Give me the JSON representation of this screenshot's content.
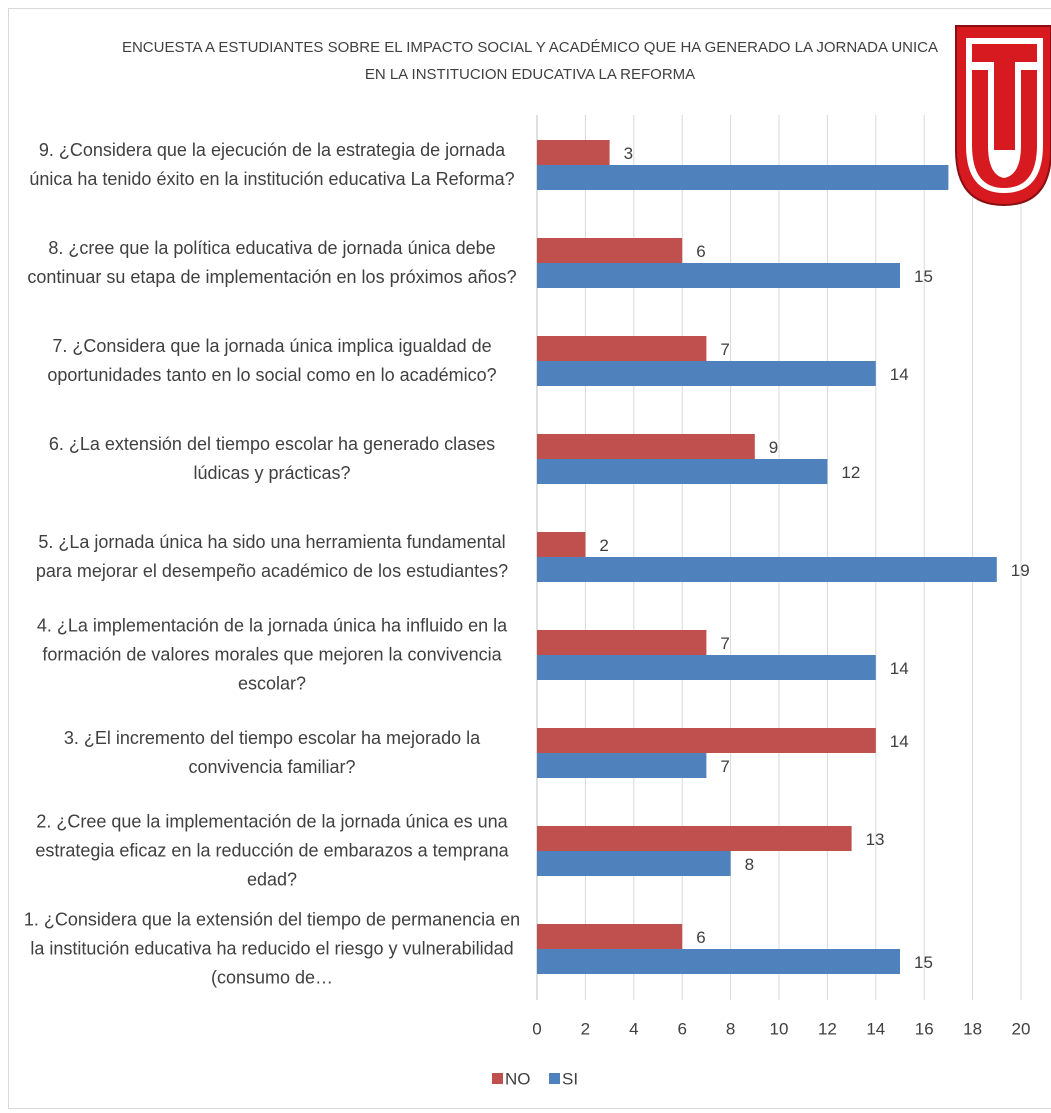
{
  "chart_data": {
    "type": "barh",
    "title": "ENCUESTA A ESTUDIANTES SOBRE EL IMPACTO SOCIAL Y ACADÉMICO QUE HA GENERADO LA JORNADA UNICA EN LA INSTITUCION EDUCATIVA LA REFORMA",
    "categories": [
      "1.   ¿Considera que  la extensión del tiempo de permanencia en la institución educativa ha reducido el riesgo  y vulnerabilidad (consumo de…",
      "2.   ¿Cree que la implementación de la  jornada única  es una estrategia eficaz en la reducción de embarazos a temprana edad?",
      "3.   ¿El incremento del tiempo escolar ha mejorado la convivencia familiar?",
      "4.   ¿La implementación de la jornada única ha influido en la formación de valores morales que mejoren la  convivencia escolar?",
      "5.   ¿La jornada única ha sido una herramienta fundamental para mejorar el desempeño académico de los estudiantes?",
      "6.   ¿La extensión del tiempo escolar  ha generado clases  lúdicas y prácticas?",
      "7.   ¿Considera que la jornada única implica igualdad de oportunidades tanto en lo social como en lo académico?",
      "8.   ¿cree que la política educativa de jornada única debe continuar su etapa de implementación en los próximos años?",
      "9.   ¿Considera que la ejecución de la estrategia de jornada única ha tenido éxito en la institución educativa La Reforma?"
    ],
    "series": [
      {
        "name": "NO",
        "color": "#c0504d",
        "values": [
          6,
          13,
          14,
          7,
          2,
          9,
          7,
          6,
          3
        ]
      },
      {
        "name": "SI",
        "color": "#4f81bd",
        "values": [
          15,
          8,
          7,
          14,
          19,
          12,
          14,
          15,
          17
        ]
      }
    ],
    "xlim": [
      0,
      20
    ],
    "xticks": [
      0,
      2,
      4,
      6,
      8,
      10,
      12,
      14,
      16,
      18,
      20
    ],
    "grid": true,
    "legend": "bottom"
  }
}
